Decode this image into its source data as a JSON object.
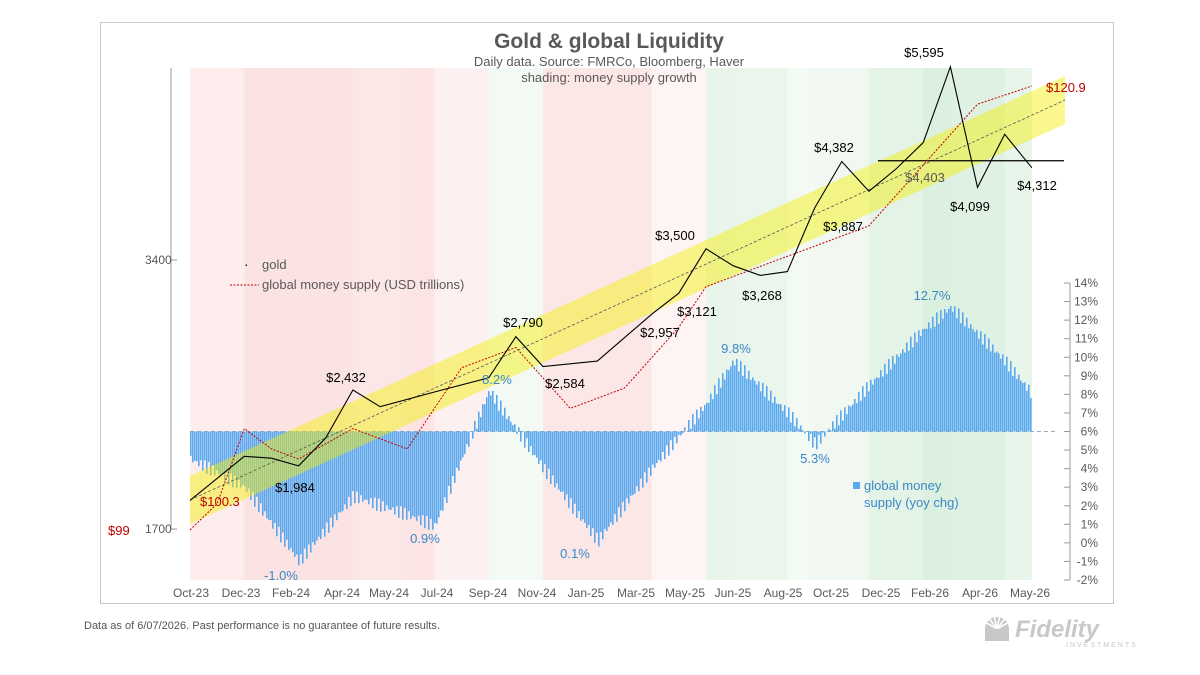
{
  "chart_data": {
    "type": "line",
    "title": "Gold & global Liquidity",
    "subtitle": "Daily data.  Source: FMRCo, Bloomberg, Haver",
    "subtitle2": "shading: money supply growth",
    "x_ticks": [
      "Oct-23",
      "Dec-23",
      "Feb-24",
      "Apr-24",
      "May-24",
      "Jul-24",
      "Sep-24",
      "Nov-24",
      "Jan-25",
      "Mar-25",
      "May-25",
      "Jun-25",
      "Aug-25",
      "Oct-25",
      "Dec-25",
      "Feb-26",
      "Apr-26",
      "May-26"
    ],
    "y_left_ticks": [
      "3400",
      "1700"
    ],
    "y_left_log": true,
    "y_right_ticks": [
      "14%",
      "13%",
      "12%",
      "11%",
      "10%",
      "9%",
      "8%",
      "7%",
      "6%",
      "5%",
      "4%",
      "3%",
      "2%",
      "1%",
      "0%",
      "-1%",
      "-2%"
    ],
    "y_right_range": [
      -2,
      14
    ],
    "series": [
      {
        "name": "gold",
        "color": "#000000",
        "x": [
          "2023-10",
          "2023-12",
          "2024-01",
          "2024-02",
          "2024-03",
          "2024-04",
          "2024-05",
          "2024-07",
          "2024-09",
          "2024-10",
          "2024-11",
          "2025-01",
          "2025-03",
          "2025-04",
          "2025-05",
          "2025-06",
          "2025-07",
          "2025-08",
          "2025-09",
          "2025-10",
          "2025-11",
          "2025-12",
          "2026-01",
          "2026-02",
          "2026-03",
          "2026-04",
          "2026-05"
        ],
        "values": [
          1830,
          2050,
          2040,
          2000,
          2150,
          2432,
          2330,
          2420,
          2510,
          2790,
          2584,
          2620,
          2957,
          3121,
          3500,
          3350,
          3268,
          3300,
          3887,
          4382,
          4060,
          4300,
          4600,
          5595,
          4099,
          4700,
          4312
        ]
      },
      {
        "name": "global money supply (USD trillions)",
        "color": "#c00000",
        "x": [
          "2023-10",
          "2023-11",
          "2023-12",
          "2024-01",
          "2024-02",
          "2024-04",
          "2024-06",
          "2024-08",
          "2024-10",
          "2024-12",
          "2025-02",
          "2025-04",
          "2025-05",
          "2025-07",
          "2025-09",
          "2025-11",
          "2026-01",
          "2026-03",
          "2026-05"
        ],
        "values": [
          99,
          100.3,
          104,
          103,
          102.5,
          104,
          103,
          107,
          108,
          105,
          106,
          109,
          111,
          112,
          113,
          114,
          117,
          120,
          120.9
        ]
      },
      {
        "name": "global money supply (yoy chg)",
        "color": "#5aa9f0",
        "axis": "right",
        "x": [
          "2023-10",
          "2023-12",
          "2024-02",
          "2024-04",
          "2024-06",
          "2024-07",
          "2024-09",
          "2024-11",
          "2025-01",
          "2025-03",
          "2025-05",
          "2025-06",
          "2025-08",
          "2025-09",
          "2025-11",
          "2026-01",
          "2026-02",
          "2026-04",
          "2026-05"
        ],
        "values": [
          4.5,
          3.0,
          -1.0,
          2.5,
          1.5,
          0.9,
          8.2,
          4.0,
          0.1,
          4.0,
          7.5,
          9.8,
          7.0,
          5.3,
          8.5,
          11.5,
          12.7,
          9.8,
          8.0
        ]
      }
    ],
    "annotations": {
      "gold_labels": [
        "$1,984",
        "$2,432",
        "$2,790",
        "$2,584",
        "$2,957",
        "$3,121",
        "$3,500",
        "$3,268",
        "$3,887",
        "$4,382",
        "$4,403",
        "$5,595",
        "$4,099",
        "$4,312"
      ],
      "money_labels": [
        "$99",
        "$100.3",
        "$120.9"
      ],
      "yoy_labels": [
        "-1.0%",
        "0.9%",
        "8.2%",
        "0.1%",
        "9.8%",
        "5.3%",
        "12.7%"
      ]
    },
    "legend": {
      "gold": "gold",
      "money": "global money supply (USD trillions)",
      "yoy_line1": "global money",
      "yoy_line2": "supply (yoy chg)",
      "placement": "top-left"
    },
    "colors": {
      "gold": "#000000",
      "money": "#c00000",
      "yoy_bars": "#5aa9f0",
      "trend_band": "#f4f000",
      "title": "#595959"
    },
    "grid": false
  },
  "footnote": "Data as of 6/07/2026. Past performance is no guarantee of future results.",
  "logo": {
    "text": "Fidelity",
    "subtext": "INVESTMENTS"
  }
}
